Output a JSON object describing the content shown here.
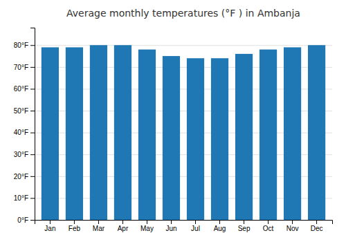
{
  "chart_data": {
    "type": "bar",
    "title": "Average monthly temperatures (°F ) in Ambanja",
    "categories": [
      "Jan",
      "Feb",
      "Mar",
      "Apr",
      "May",
      "Jun",
      "Jul",
      "Aug",
      "Sep",
      "Oct",
      "Nov",
      "Dec"
    ],
    "values": [
      79,
      79,
      80,
      80,
      78,
      75,
      74,
      74,
      76,
      78,
      79,
      80
    ],
    "ylim": [
      0,
      88
    ],
    "yticks": [
      {
        "value": 0,
        "label": "0°F"
      },
      {
        "value": 10,
        "label": "10°F"
      },
      {
        "value": 20,
        "label": "20°F"
      },
      {
        "value": 30,
        "label": "30°F"
      },
      {
        "value": 40,
        "label": "40°F"
      },
      {
        "value": 50,
        "label": "50°F"
      },
      {
        "value": 60,
        "label": "60°F"
      },
      {
        "value": 70,
        "label": "70°F"
      },
      {
        "value": 80,
        "label": "80°F"
      }
    ],
    "grid": true
  }
}
